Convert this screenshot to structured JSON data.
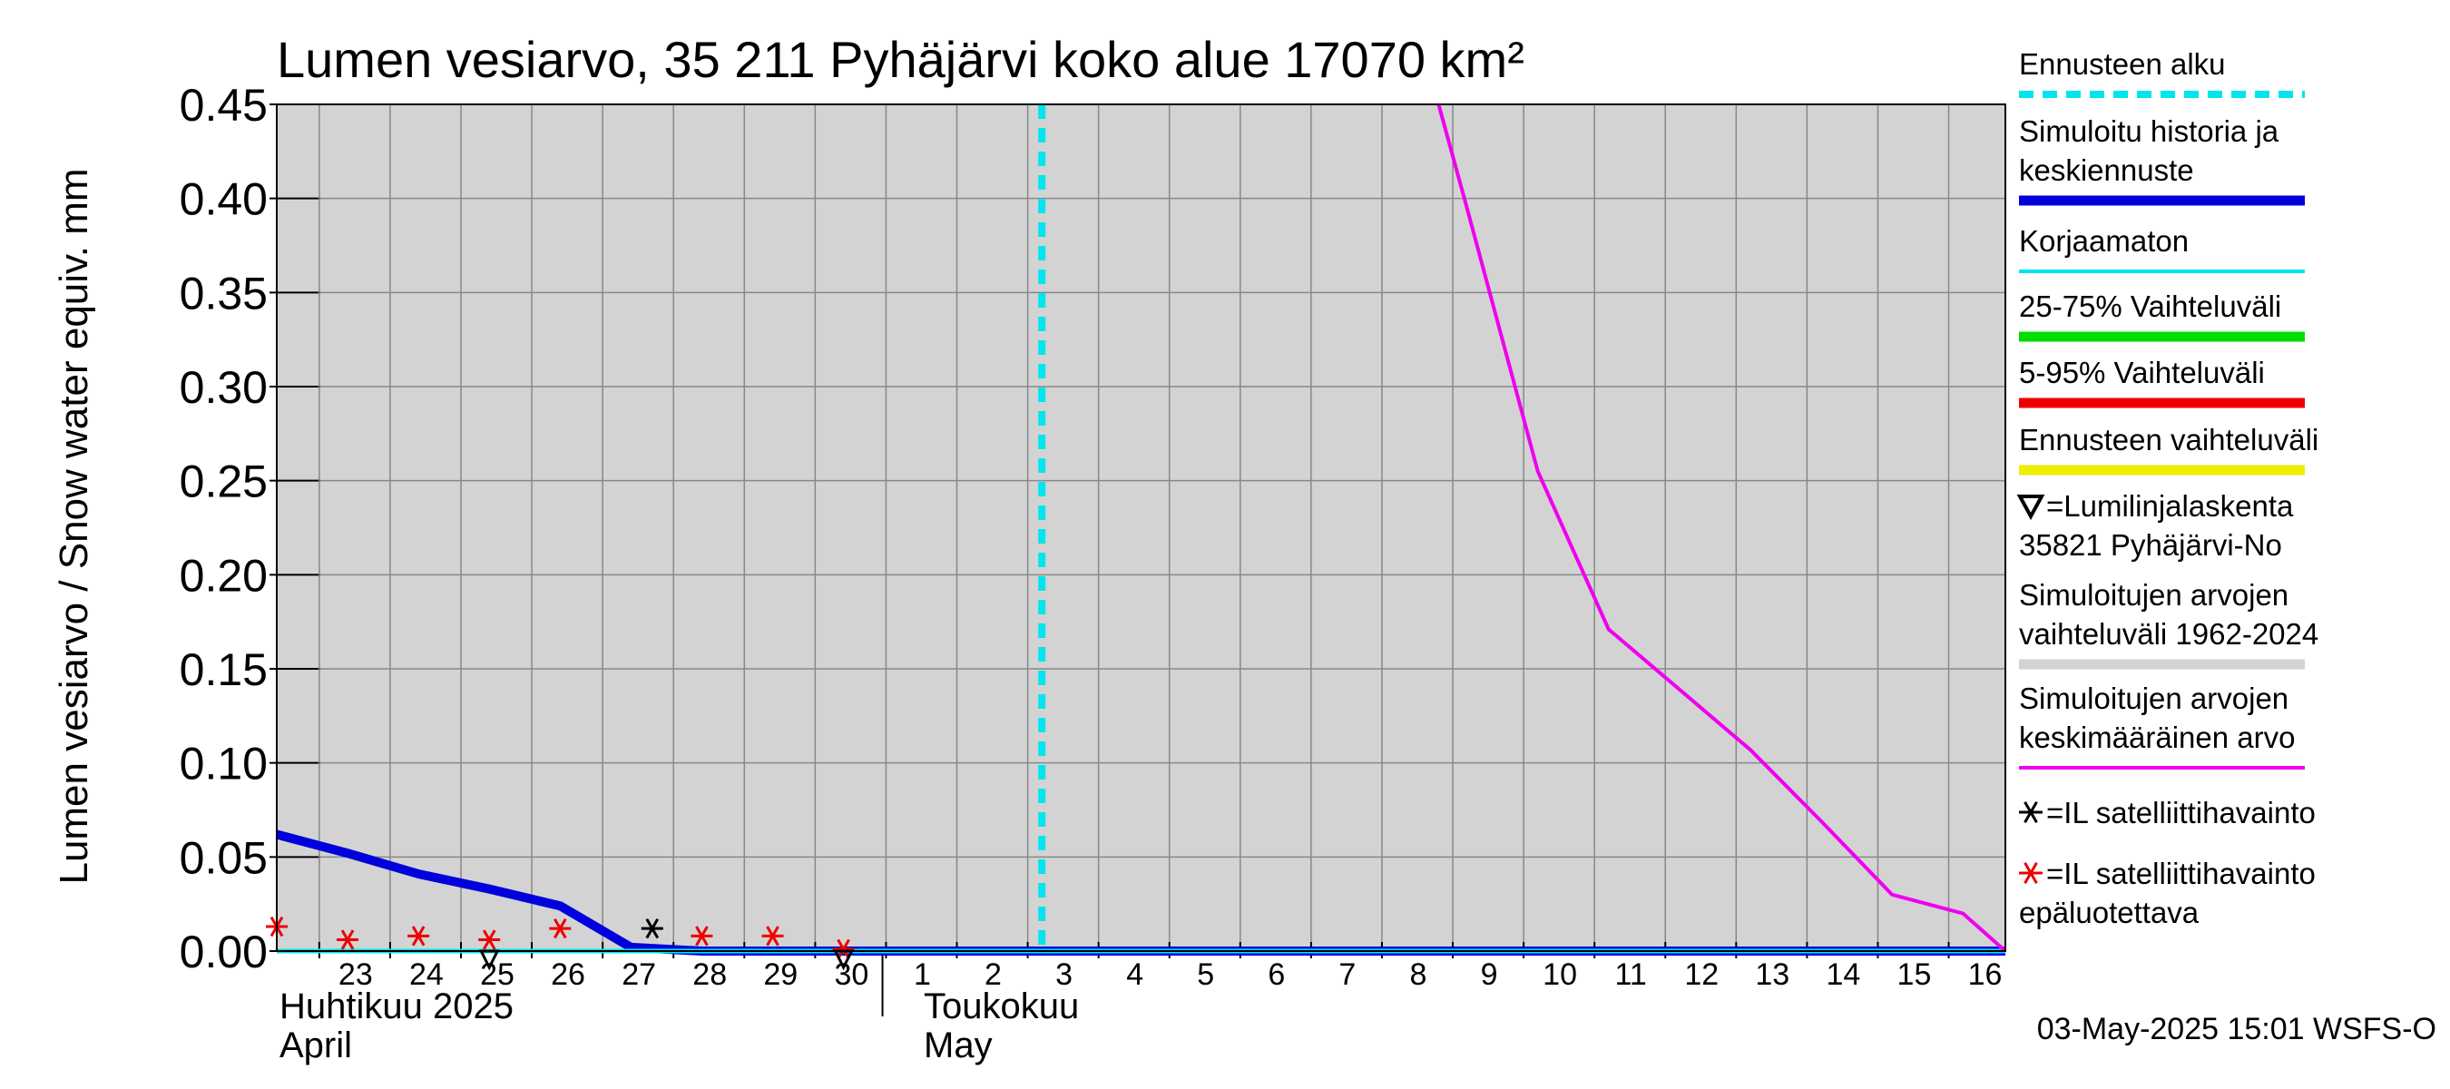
{
  "chart_data": {
    "type": "line",
    "title": "Lumen vesiarvo, 35 211 Pyhäjärvi koko alue 17070 km²",
    "ylabel": "Lumen vesiarvo / Snow water equiv.    mm",
    "ylim": [
      0,
      0.45
    ],
    "yticks": [
      "0.00",
      "0.05",
      "0.10",
      "0.15",
      "0.20",
      "0.25",
      "0.30",
      "0.35",
      "0.40",
      "0.45"
    ],
    "x_day_range": [
      22.4,
      46.8
    ],
    "x_ticks": [
      {
        "day": 23,
        "label": "23"
      },
      {
        "day": 24,
        "label": "24"
      },
      {
        "day": 25,
        "label": "25"
      },
      {
        "day": 26,
        "label": "26"
      },
      {
        "day": 27,
        "label": "27"
      },
      {
        "day": 28,
        "label": "28"
      },
      {
        "day": 29,
        "label": "29"
      },
      {
        "day": 30,
        "label": "30"
      },
      {
        "day": 31,
        "label": "1"
      },
      {
        "day": 32,
        "label": "2"
      },
      {
        "day": 33,
        "label": "3"
      },
      {
        "day": 34,
        "label": "4"
      },
      {
        "day": 35,
        "label": "5"
      },
      {
        "day": 36,
        "label": "6"
      },
      {
        "day": 37,
        "label": "7"
      },
      {
        "day": 38,
        "label": "8"
      },
      {
        "day": 39,
        "label": "9"
      },
      {
        "day": 40,
        "label": "10"
      },
      {
        "day": 41,
        "label": "11"
      },
      {
        "day": 42,
        "label": "12"
      },
      {
        "day": 43,
        "label": "13"
      },
      {
        "day": 44,
        "label": "14"
      },
      {
        "day": 45,
        "label": "15"
      },
      {
        "day": 46,
        "label": "16"
      }
    ],
    "month_labels": [
      {
        "line1": "Huhtikuu  2025",
        "line2": "April"
      },
      {
        "line1": "Toukokuu",
        "line2": "May"
      }
    ],
    "forecast_start_day": 33.2,
    "series": [
      {
        "name": "Simuloitu historia ja keskiennuste",
        "color": "#0000dd",
        "width": 10,
        "points": [
          [
            22.4,
            0.062
          ],
          [
            23.4,
            0.052
          ],
          [
            24.4,
            0.041
          ],
          [
            25.4,
            0.033
          ],
          [
            26.4,
            0.024
          ],
          [
            27.4,
            0.002
          ],
          [
            28.4,
            0.0
          ],
          [
            30.4,
            0.0
          ],
          [
            46.8,
            0.0
          ]
        ]
      },
      {
        "name": "Korjaamaton",
        "color": "#00e5ee",
        "width": 5,
        "points": [
          [
            22.4,
            0.0
          ],
          [
            46.8,
            0.0
          ]
        ]
      },
      {
        "name": "Simuloitujen arvojen keskimääräinen arvo",
        "color": "#ee00ee",
        "width": 4,
        "points": [
          [
            38.8,
            0.45
          ],
          [
            39.2,
            0.395
          ],
          [
            40.2,
            0.255
          ],
          [
            41.2,
            0.171
          ],
          [
            42.2,
            0.139
          ],
          [
            43.2,
            0.107
          ],
          [
            44.2,
            0.069
          ],
          [
            45.2,
            0.03
          ],
          [
            46.2,
            0.02
          ],
          [
            46.8,
            0.0
          ]
        ]
      }
    ],
    "satellite_reliable": [
      [
        27.7,
        0.012
      ]
    ],
    "satellite_unreliable": [
      [
        22.4,
        0.013
      ],
      [
        23.4,
        0.006
      ],
      [
        24.4,
        0.008
      ],
      [
        25.4,
        0.006
      ],
      [
        26.4,
        0.012
      ],
      [
        28.4,
        0.008
      ],
      [
        29.4,
        0.008
      ],
      [
        30.4,
        0.001
      ]
    ],
    "snow_course": [
      [
        25.4,
        0.0
      ],
      [
        30.4,
        0.0
      ]
    ]
  },
  "legend": {
    "items": [
      {
        "text": [
          "Ennusteen alku"
        ],
        "color": "#00e5ee",
        "style": "dashed"
      },
      {
        "text": [
          "Simuloitu historia ja",
          "keskiennuste"
        ],
        "color": "#0000dd",
        "style": "thick"
      },
      {
        "text": [
          "Korjaamaton"
        ],
        "color": "#00e5ee",
        "style": "line"
      },
      {
        "text": [
          "25-75% Vaihteluväli"
        ],
        "color": "#00dd00",
        "style": "thick"
      },
      {
        "text": [
          "5-95% Vaihteluväli"
        ],
        "color": "#ee0000",
        "style": "thick"
      },
      {
        "text": [
          "Ennusteen vaihteluväli"
        ],
        "color": "#eeee00",
        "style": "thick"
      },
      {
        "text": [
          "=Lumilinjalaskenta",
          "35821 Pyhäjärvi-No"
        ],
        "marker": "triangle"
      },
      {
        "text": [
          "Simuloitujen arvojen",
          "vaihteluväli 1962-2024"
        ],
        "color": "#d3d3d3",
        "style": "thick"
      },
      {
        "text": [
          "Simuloitujen arvojen",
          "keskimääräinen arvo"
        ],
        "color": "#ee00ee",
        "style": "line"
      },
      {
        "text": [
          "=IL satelliittihavainto"
        ],
        "marker": "star-black"
      },
      {
        "text": [
          "=IL satelliittihavainto",
          "epäluotettava"
        ],
        "marker": "star-red"
      }
    ]
  },
  "colors": {
    "plot_bg": "#d3d3d3",
    "grid": "#888888",
    "forecast_line": "#00e5ee",
    "reliable_star": "#000000",
    "unreliable_star": "#ee0000"
  },
  "footer": {
    "timestamp": "03-May-2025 15:01 WSFS-O"
  }
}
